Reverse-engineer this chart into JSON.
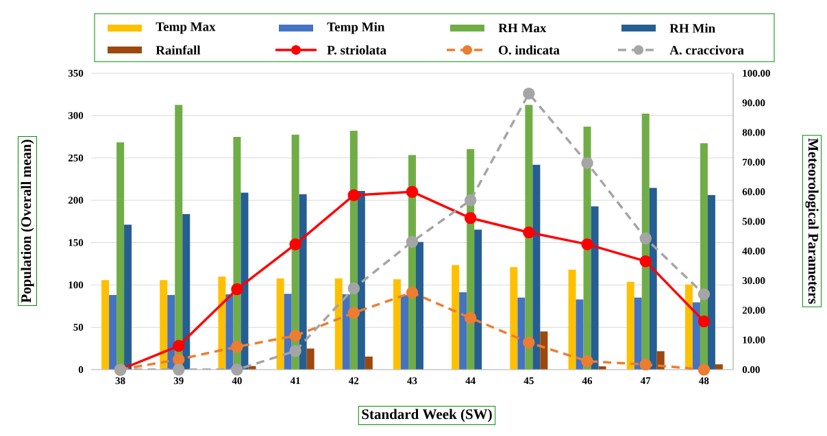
{
  "chart_data": {
    "type": "bar",
    "xlabel": "Standard Week (SW)",
    "ylabel": "Population (Overall mean)",
    "y2label": "Meteorological Parameters",
    "categories": [
      "38",
      "39",
      "40",
      "41",
      "42",
      "43",
      "44",
      "45",
      "46",
      "47",
      "48"
    ],
    "series": [
      {
        "name": "Temp Max",
        "axis": "y2",
        "color": "#ffc000",
        "values": [
          30.2,
          30.2,
          31.4,
          30.8,
          30.8,
          30.5,
          35.3,
          34.6,
          33.7,
          29.6,
          28.7
        ]
      },
      {
        "name": "Temp Min",
        "axis": "y2",
        "color": "#4472c4",
        "values": [
          25.2,
          25.2,
          25.4,
          25.6,
          25.4,
          25.2,
          26.1,
          24.3,
          23.7,
          24.3,
          22.7
        ]
      },
      {
        "name": "RH Max",
        "axis": "y2",
        "color": "#70ad47",
        "values": [
          76.7,
          89.3,
          78.5,
          79.3,
          80.6,
          72.4,
          74.4,
          89.3,
          82.0,
          86.4,
          76.4
        ]
      },
      {
        "name": "RH Min",
        "axis": "y2",
        "color": "#255e91",
        "values": [
          48.9,
          52.5,
          59.7,
          59.2,
          60.3,
          43.1,
          47.2,
          69.1,
          55.1,
          61.3,
          58.9
        ]
      },
      {
        "name": "Rainfall",
        "axis": "y2",
        "color": "#9e480e",
        "values": [
          0,
          0,
          1.2,
          7.1,
          4.4,
          0,
          0,
          12.9,
          1.1,
          6.2,
          1.8
        ]
      },
      {
        "name": "P. striolata",
        "type": "line",
        "color": "#ff0000",
        "line_style": "solid",
        "marker": "circle",
        "values": [
          0,
          28,
          95,
          148,
          206,
          210,
          179,
          162,
          148,
          128,
          57
        ]
      },
      {
        "name": "O. indicata",
        "type": "line",
        "color": "#ed7d31",
        "line_style": "dashed",
        "marker": "circle",
        "values": [
          0,
          12,
          27,
          40,
          67,
          91,
          61,
          32,
          10,
          6,
          0
        ]
      },
      {
        "name": "A. craccivora",
        "type": "line",
        "color": "#a5a5a5",
        "line_style": "dashed",
        "marker": "circle",
        "values": [
          0,
          0,
          0,
          22,
          96,
          151,
          200,
          326,
          244,
          155,
          89
        ]
      }
    ],
    "ylim": [
      0,
      350
    ],
    "yticks": [
      0,
      50,
      100,
      150,
      200,
      250,
      300,
      350
    ],
    "y2lim": [
      0,
      100
    ],
    "y2ticks": [
      {
        "value": 0,
        "label": "0.00"
      },
      {
        "value": 10,
        "label": "10.00"
      },
      {
        "value": 20,
        "label": "20.00"
      },
      {
        "value": 30,
        "label": "30.00"
      },
      {
        "value": 40,
        "label": "40.00"
      },
      {
        "value": 50,
        "label": "50.00"
      },
      {
        "value": 60,
        "label": "60.00"
      },
      {
        "value": 70,
        "label": "70.00"
      },
      {
        "value": 80,
        "label": "80.00"
      },
      {
        "value": 90,
        "label": "90.00"
      },
      {
        "value": 100,
        "label": "100.00"
      }
    ],
    "grid": "y",
    "legend": "top"
  }
}
